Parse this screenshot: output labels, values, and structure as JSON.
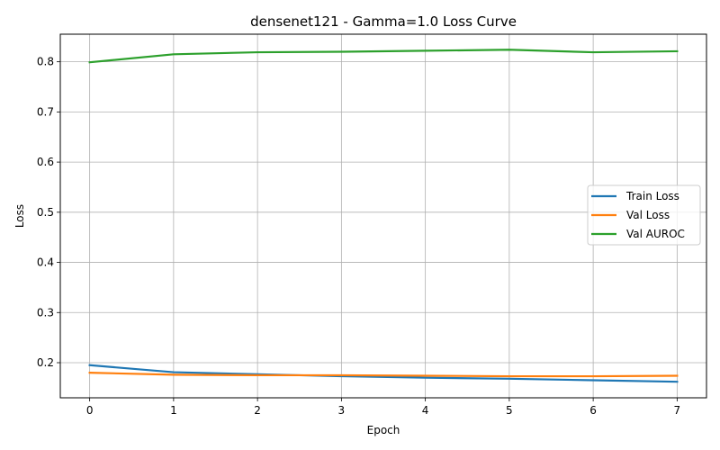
{
  "chart_data": {
    "type": "line",
    "title": "densenet121 - Gamma=1.0 Loss Curve",
    "xlabel": "Epoch",
    "ylabel": "Loss",
    "x": [
      0,
      1,
      2,
      3,
      4,
      5,
      6,
      7
    ],
    "xlim": [
      -0.35,
      7.35
    ],
    "ylim": [
      0.13,
      0.855
    ],
    "xticks": [
      "0",
      "1",
      "2",
      "3",
      "4",
      "5",
      "6",
      "7"
    ],
    "yticks": [
      "0.2",
      "0.3",
      "0.4",
      "0.5",
      "0.6",
      "0.7",
      "0.8"
    ],
    "grid": true,
    "legend_position": "center-right",
    "series": [
      {
        "name": "Train Loss",
        "color": "#1f77b4",
        "values": [
          0.195,
          0.181,
          0.177,
          0.173,
          0.17,
          0.168,
          0.165,
          0.162
        ]
      },
      {
        "name": "Val Loss",
        "color": "#ff7f0e",
        "values": [
          0.18,
          0.176,
          0.175,
          0.175,
          0.174,
          0.173,
          0.173,
          0.174
        ]
      },
      {
        "name": "Val AUROC",
        "color": "#2ca02c",
        "values": [
          0.799,
          0.815,
          0.819,
          0.82,
          0.822,
          0.824,
          0.819,
          0.821
        ]
      }
    ]
  }
}
